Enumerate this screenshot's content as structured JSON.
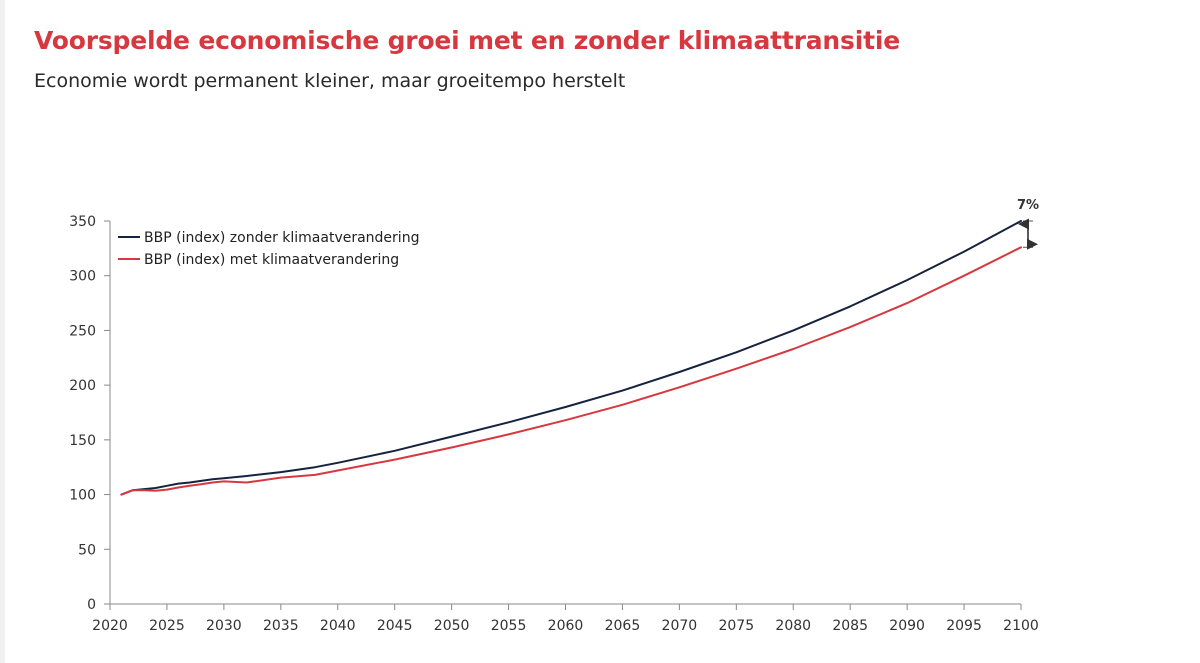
{
  "title": "Voorspelde economische groei met en zonder klimaattransitie",
  "subtitle": "Economie wordt permanent kleiner, maar groeitempo herstelt",
  "chart_data": {
    "type": "line",
    "title": "Voorspelde economische groei met en zonder klimaattransitie",
    "subtitle": "Economie wordt permanent kleiner, maar groeitempo herstelt",
    "xlabel": "",
    "ylabel": "",
    "xlim": [
      2020,
      2100
    ],
    "ylim": [
      0,
      350
    ],
    "x_ticks": [
      2020,
      2025,
      2030,
      2035,
      2040,
      2045,
      2050,
      2055,
      2060,
      2065,
      2070,
      2075,
      2080,
      2085,
      2090,
      2095,
      2100
    ],
    "y_ticks": [
      0,
      50,
      100,
      150,
      200,
      250,
      300,
      350
    ],
    "grid": false,
    "legend_position": "top-left",
    "x": [
      2021,
      2022,
      2023,
      2024,
      2025,
      2026,
      2027,
      2028,
      2029,
      2030,
      2032,
      2035,
      2038,
      2040,
      2045,
      2050,
      2055,
      2060,
      2065,
      2070,
      2075,
      2080,
      2085,
      2090,
      2095,
      2100
    ],
    "series": [
      {
        "name": "BBP (index) zonder klimaatverandering",
        "color": "#16233f",
        "values": [
          100,
          104,
          105,
          106,
          108,
          110,
          111,
          112.5,
          114,
          115,
          117,
          120.5,
          125,
          129,
          140,
          153,
          166,
          180,
          195,
          212,
          230,
          250,
          272,
          296,
          322,
          350
        ]
      },
      {
        "name": "BBP (index) met klimaatverandering",
        "color": "#d7383f",
        "values": [
          100,
          104,
          104,
          103.5,
          104.5,
          106.5,
          108,
          109.5,
          111,
          112,
          111,
          115.5,
          118,
          122,
          132,
          143,
          155,
          168,
          182,
          198,
          215,
          233,
          253,
          275,
          300,
          326
        ]
      }
    ],
    "annotations": [
      {
        "text": "7%",
        "x": 2100,
        "y_from": 326,
        "y_to": 350
      }
    ]
  }
}
